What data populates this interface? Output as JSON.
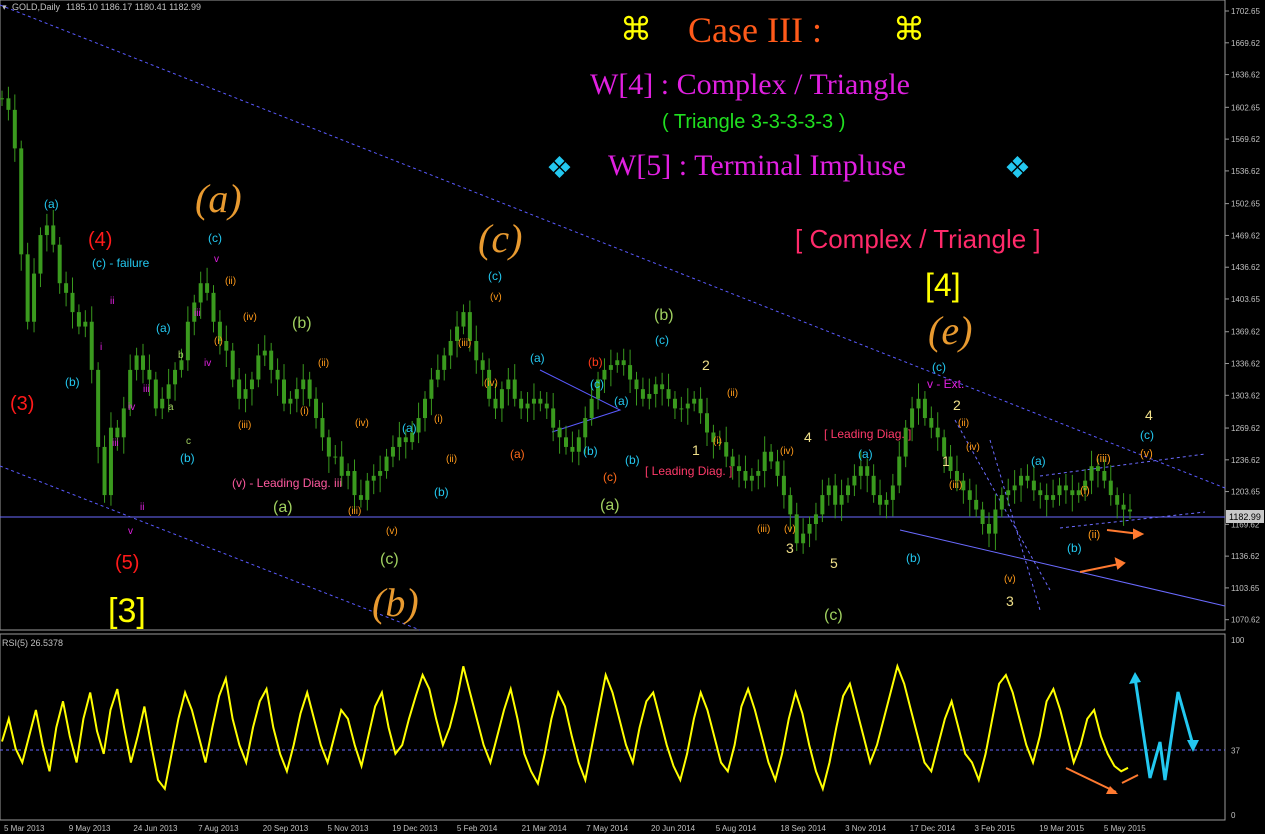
{
  "header": {
    "symbol": "GOLD,Daily",
    "ohlc": "1185.10 1186.17 1180.41 1182.99"
  },
  "titles": {
    "case": "Case III :",
    "case_symbol": "⌘",
    "w4": "W[4] : Complex / Triangle",
    "triangle": "( Triangle 3-3-3-3-3 )",
    "w5": "W[5] : Terminal Impluse",
    "w5_symbol": "❖",
    "complex": "[ Complex / Triangle ]"
  },
  "colors": {
    "background": "#000000",
    "candles": "#3a9a1e",
    "rsi_line": "#ffff00",
    "axis": "#c0c0c0",
    "channel": "#3a3aff",
    "accent_orange": "#ff6a1a",
    "accent_magenta": "#e040e0",
    "accent_cyan": "#23c8f0"
  },
  "chart_data": [
    {
      "type": "candlestick",
      "symbol": "GOLD",
      "timeframe": "Daily",
      "ylim": [
        1062,
        1712
      ],
      "y_ticks": [
        "1702.65",
        "1669.62",
        "1636.62",
        "1602.65",
        "1569.62",
        "1536.62",
        "1502.65",
        "1469.62",
        "1436.62",
        "1403.65",
        "1369.62",
        "1336.62",
        "1303.62",
        "1269.62",
        "1236.62",
        "1203.65",
        "1169.62",
        "1136.62",
        "1103.65",
        "1070.62"
      ],
      "current_price": "1182.99",
      "x_ticks": [
        "5 Mar 2013",
        "9 May 2013",
        "24 Jun 2013",
        "7 Aug 2013",
        "20 Sep 2013",
        "5 Nov 2013",
        "19 Dec 2013",
        "5 Feb 2014",
        "21 Mar 2014",
        "7 May 2014",
        "20 Jun 2014",
        "5 Aug 2014",
        "18 Sep 2014",
        "3 Nov 2014",
        "17 Dec 2014",
        "3 Feb 2015",
        "19 Mar 2015",
        "5 May 2015"
      ],
      "close": [
        1612,
        1600,
        1560,
        1450,
        1380,
        1430,
        1470,
        1480,
        1460,
        1420,
        1410,
        1390,
        1375,
        1380,
        1330,
        1250,
        1200,
        1270,
        1260,
        1290,
        1330,
        1345,
        1330,
        1320,
        1290,
        1300,
        1315,
        1330,
        1340,
        1380,
        1400,
        1420,
        1410,
        1380,
        1360,
        1350,
        1320,
        1300,
        1310,
        1320,
        1345,
        1350,
        1330,
        1320,
        1295,
        1300,
        1310,
        1320,
        1300,
        1280,
        1260,
        1240,
        1240,
        1220,
        1225,
        1200,
        1195,
        1215,
        1220,
        1225,
        1240,
        1250,
        1260,
        1255,
        1265,
        1280,
        1300,
        1320,
        1330,
        1345,
        1360,
        1375,
        1390,
        1360,
        1340,
        1330,
        1300,
        1290,
        1310,
        1320,
        1300,
        1290,
        1295,
        1300,
        1295,
        1290,
        1270,
        1260,
        1250,
        1245,
        1260,
        1280,
        1300,
        1320,
        1330,
        1335,
        1340,
        1335,
        1320,
        1310,
        1300,
        1305,
        1315,
        1310,
        1300,
        1290,
        1290,
        1295,
        1300,
        1285,
        1265,
        1255,
        1255,
        1240,
        1230,
        1225,
        1215,
        1220,
        1225,
        1245,
        1235,
        1220,
        1200,
        1180,
        1150,
        1160,
        1170,
        1180,
        1200,
        1210,
        1190,
        1200,
        1210,
        1220,
        1230,
        1220,
        1200,
        1190,
        1195,
        1210,
        1240,
        1270,
        1290,
        1300,
        1280,
        1270,
        1260,
        1240,
        1225,
        1215,
        1205,
        1195,
        1185,
        1170,
        1160,
        1185,
        1200,
        1205,
        1210,
        1220,
        1215,
        1205,
        1200,
        1195,
        1200,
        1210,
        1205,
        1200,
        1205,
        1215,
        1230,
        1225,
        1215,
        1200,
        1190,
        1185,
        1183
      ],
      "annotations": {
        "wave_labels_red": [
          "(3)",
          "(4)",
          "(5)"
        ],
        "wave_labels_orange_large": [
          "(a)",
          "(b)",
          "(c)",
          "(e)"
        ],
        "wave_labels_yellow_large": [
          "[3]",
          "[4]"
        ],
        "wave_labels_green": [
          "(a)",
          "(b)",
          "(c)"
        ],
        "wave_labels_cyan": [
          "(a)",
          "(b)",
          "(c)"
        ],
        "text_notes": [
          "(c) - failure",
          "(v) - Leading Diag. iii",
          "[ Leading Diag. ]",
          "v - Ext.",
          "(b)",
          "(a)",
          "(c)",
          "b",
          "d",
          "e",
          "c",
          "a",
          "5",
          "4",
          "3",
          "2",
          "1",
          "i",
          "ii",
          "iii",
          "iv",
          "v",
          "(i)",
          "(ii)",
          "(iii)",
          "(iv)",
          "(v)"
        ]
      }
    },
    {
      "type": "line",
      "title": "RSI(5) 26.5378",
      "ylim": [
        0,
        100
      ],
      "y_ticks": [
        "100",
        "37",
        "0"
      ],
      "reference_level": 37,
      "values": [
        42,
        55,
        38,
        30,
        45,
        60,
        40,
        25,
        50,
        65,
        45,
        30,
        55,
        70,
        48,
        35,
        60,
        72,
        50,
        30,
        45,
        62,
        40,
        20,
        15,
        35,
        55,
        70,
        60,
        45,
        30,
        50,
        68,
        78,
        55,
        40,
        30,
        50,
        65,
        72,
        50,
        35,
        25,
        40,
        58,
        70,
        55,
        40,
        30,
        45,
        60,
        55,
        40,
        28,
        45,
        62,
        70,
        50,
        35,
        40,
        55,
        68,
        80,
        72,
        55,
        40,
        50,
        65,
        85,
        70,
        55,
        40,
        30,
        45,
        60,
        72,
        55,
        35,
        25,
        18,
        35,
        55,
        70,
        62,
        45,
        30,
        20,
        40,
        60,
        80,
        70,
        55,
        40,
        30,
        50,
        65,
        70,
        55,
        40,
        28,
        20,
        35,
        55,
        70,
        60,
        45,
        30,
        25,
        40,
        62,
        72,
        60,
        45,
        30,
        20,
        35,
        55,
        70,
        58,
        40,
        25,
        15,
        30,
        50,
        68,
        75,
        60,
        45,
        30,
        40,
        55,
        70,
        85,
        75,
        60,
        45,
        30,
        25,
        40,
        55,
        65,
        50,
        35,
        30,
        20,
        35,
        55,
        75,
        80,
        70,
        55,
        40,
        30,
        45,
        65,
        72,
        60,
        45,
        30,
        40,
        55,
        60,
        45,
        35,
        28,
        25,
        27
      ]
    }
  ]
}
